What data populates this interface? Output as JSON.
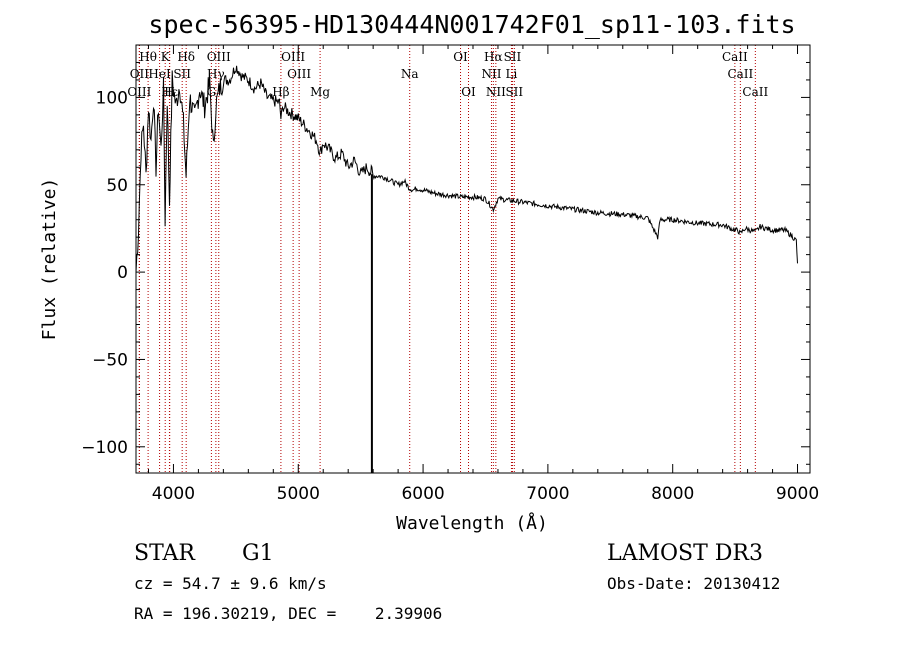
{
  "chart_data": {
    "type": "line",
    "title": "spec-56395-HD130444N001742F01_sp11-103.fits",
    "xlabel": "Wavelength (Å)",
    "ylabel": "Flux (relative)",
    "xlim": [
      3700,
      9100
    ],
    "ylim": [
      -115,
      130
    ],
    "x_ticks": [
      4000,
      5000,
      6000,
      7000,
      8000,
      9000
    ],
    "y_ticks": [
      -100,
      -50,
      0,
      50,
      100
    ],
    "series": [
      {
        "name": "spectrum",
        "x": [
          3700,
          3720,
          3740,
          3760,
          3780,
          3800,
          3820,
          3840,
          3860,
          3880,
          3900,
          3920,
          3933,
          3950,
          3968,
          3990,
          4020,
          4050,
          4080,
          4101,
          4130,
          4170,
          4210,
          4250,
          4290,
          4320,
          4340,
          4370,
          4400,
          4450,
          4500,
          4550,
          4600,
          4650,
          4700,
          4750,
          4800,
          4850,
          4861,
          4880,
          4920,
          4960,
          5000,
          5050,
          5100,
          5150,
          5175,
          5200,
          5250,
          5300,
          5350,
          5400,
          5450,
          5500,
          5550,
          5580,
          5590,
          5600,
          5650,
          5700,
          5750,
          5800,
          5850,
          5890,
          5920,
          5950,
          6000,
          6100,
          6200,
          6300,
          6400,
          6500,
          6563,
          6600,
          6700,
          6800,
          6900,
          7000,
          7200,
          7400,
          7600,
          7800,
          7880,
          7900,
          8000,
          8200,
          8400,
          8498,
          8520,
          8542,
          8580,
          8662,
          8700,
          8800,
          8900,
          8950,
          8990,
          9000
        ],
        "y": [
          0,
          25,
          70,
          85,
          55,
          95,
          75,
          100,
          60,
          95,
          70,
          105,
          30,
          100,
          40,
          110,
          95,
          108,
          85,
          55,
          100,
          88,
          105,
          95,
          108,
          70,
          95,
          105,
          110,
          110,
          118,
          112,
          110,
          105,
          108,
          100,
          98,
          97,
          88,
          95,
          92,
          90,
          88,
          84,
          80,
          75,
          68,
          74,
          70,
          65,
          68,
          60,
          64,
          56,
          60,
          57,
          58,
          55,
          55,
          54,
          52,
          50,
          52,
          48,
          47,
          48,
          47,
          45,
          44,
          43,
          43,
          42,
          36,
          42,
          41,
          40,
          39,
          38,
          36,
          34,
          33,
          31,
          20,
          30,
          30,
          28,
          27,
          24,
          24,
          22,
          25,
          23,
          26,
          24,
          24,
          21,
          18,
          5
        ]
      }
    ],
    "deep_drop": {
      "x": 5590,
      "y": -120
    },
    "emission_lines": [
      {
        "name": "Hθ",
        "x": 3797,
        "row": 1
      },
      {
        "name": "K",
        "x": 3934,
        "row": 1
      },
      {
        "name": "Hδ",
        "x": 4102,
        "row": 1
      },
      {
        "name": "OIII",
        "x": 4363,
        "row": 1
      },
      {
        "name": "OIII",
        "x": 4959,
        "row": 1
      },
      {
        "name": "OI",
        "x": 6300,
        "row": 1
      },
      {
        "name": "Hα",
        "x": 6563,
        "row": 1
      },
      {
        "name": "SII",
        "x": 6716,
        "row": 1
      },
      {
        "name": "CaII",
        "x": 8498,
        "row": 1
      },
      {
        "name": "OII",
        "x": 3727,
        "row": 2
      },
      {
        "name": "HeI",
        "x": 3889,
        "row": 2
      },
      {
        "name": "SII",
        "x": 4070,
        "row": 2
      },
      {
        "name": "Hγ",
        "x": 4340,
        "row": 2
      },
      {
        "name": "OIII",
        "x": 5007,
        "row": 2
      },
      {
        "name": "Na",
        "x": 5893,
        "row": 2
      },
      {
        "name": "NII",
        "x": 6548,
        "row": 2
      },
      {
        "name": "Li",
        "x": 6708,
        "row": 2
      },
      {
        "name": "CaII",
        "x": 8542,
        "row": 2
      },
      {
        "name": "OIII",
        "x": 3727,
        "row": 3
      },
      {
        "name": "Hε",
        "x": 3970,
        "row": 3
      },
      {
        "name": "H",
        "x": 3968,
        "row": 3
      },
      {
        "name": "G",
        "x": 4304,
        "row": 3
      },
      {
        "name": "Hβ",
        "x": 4861,
        "row": 3
      },
      {
        "name": "Mg",
        "x": 5175,
        "row": 3
      },
      {
        "name": "OI",
        "x": 6364,
        "row": 3
      },
      {
        "name": "NII",
        "x": 6583,
        "row": 3
      },
      {
        "name": "SII",
        "x": 6731,
        "row": 3
      },
      {
        "name": "CaII",
        "x": 8662,
        "row": 3
      }
    ]
  },
  "info": {
    "object_type": "STAR",
    "subclass": "G1",
    "survey": "LAMOST DR3",
    "cz": "cz = 54.7 ± 9.6 km/s",
    "obs_date": "Obs-Date: 20130412",
    "radec": "RA = 196.30219, DEC =    2.39906"
  }
}
